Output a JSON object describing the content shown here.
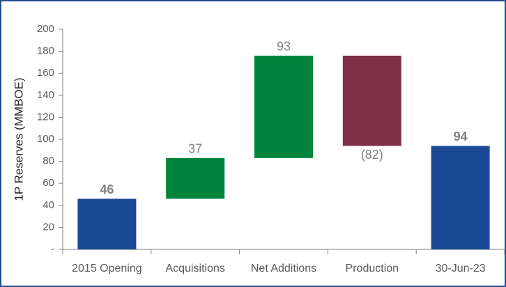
{
  "chart_data": {
    "type": "waterfall",
    "y_label": "1P Reserves (MMBOE)",
    "categories": [
      "2015 Opening",
      "Acquisitions",
      "Net Additions",
      "Production",
      "30-Jun-23"
    ],
    "measures": [
      "total",
      "relative",
      "relative",
      "relative",
      "total"
    ],
    "values": [
      46,
      37,
      93,
      -82,
      94
    ],
    "value_labels": [
      "46",
      "37",
      "93",
      "(82)",
      "94"
    ],
    "colors": {
      "total": "#1a4a96",
      "increase": "#00843d",
      "decrease": "#7e3048"
    },
    "ylim": [
      0,
      200
    ],
    "yticks": [
      {
        "value": 0,
        "label": "-"
      },
      20,
      40,
      60,
      80,
      100,
      120,
      140,
      160,
      180,
      200
    ]
  }
}
